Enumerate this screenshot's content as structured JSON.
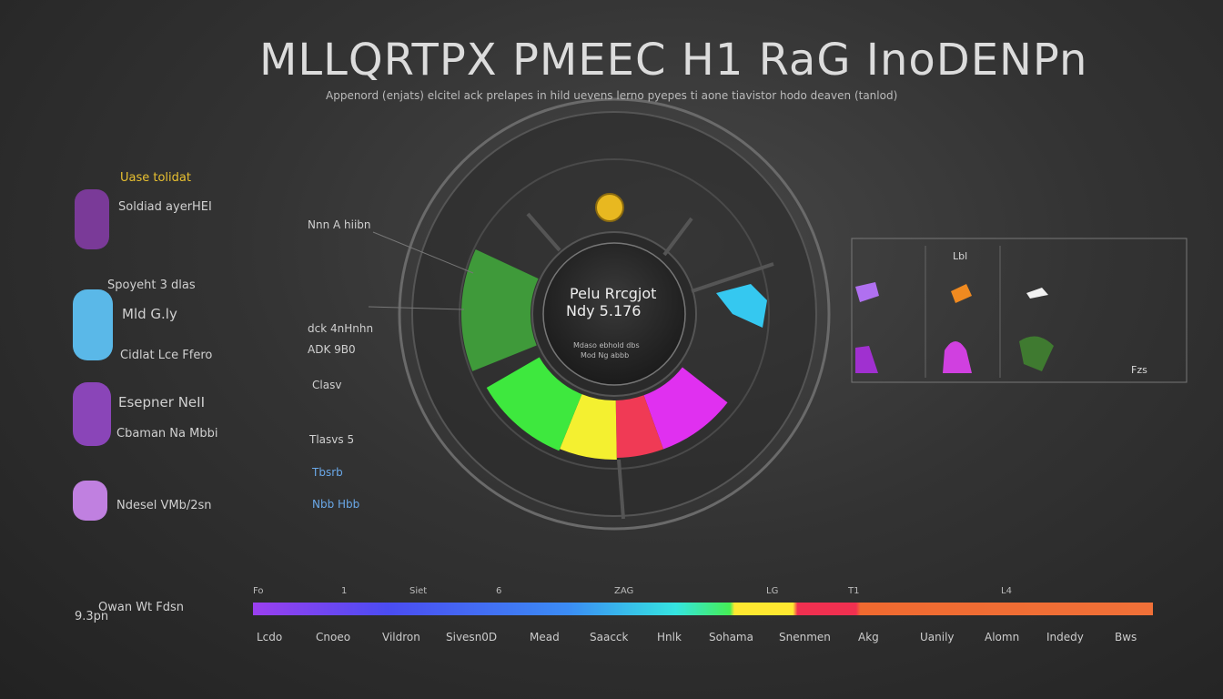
{
  "header": {
    "title": "MLLQRTPX PMEEC H1 RaG InoDENPn",
    "subtitle": "Appenord (enjats) elcitel ack prelapes in hild uevens lerno pyepes ti aone tiavistor hodo deaven (tanlod)"
  },
  "left_list": [
    "Uase tolidat",
    "Soldiad ayerHEI",
    "Spoyeht 3 dlas",
    "Mld G.ly",
    "Cidlat Lce Ffero",
    "Esepner NeII",
    "Cbaman Na Mbbi",
    "Ndesel VMb/2sn",
    "Owan Wt Fdsn",
    "9.3pn"
  ],
  "middle_labels": [
    "Nnn A hiibn",
    "dck 4nHnhn",
    "ADK 9B0",
    "Clasv",
    "Tlasvs 5",
    "Tbsrb",
    "Nbb Hbb"
  ],
  "center": {
    "title": "Pelu Rrcgjot",
    "value": "Ndy 5.176",
    "note1": "Mdaso ebhold dbs",
    "note2": "Mod Ng abbb"
  },
  "panel": {
    "header": "Lbl",
    "footer": "Fzs"
  },
  "scale": {
    "ticks": [
      "Fo",
      "1",
      "Siet",
      "6",
      "ZAG",
      "LG",
      "T1",
      "L4"
    ],
    "labels": [
      "Lcdo",
      "Cnoeo",
      "Vildron",
      "Sivesn0D",
      "Mead",
      "Saacck",
      "Hnlk",
      "Sohama",
      "Snenmen",
      "Akg",
      "Uanily",
      "Alomn",
      "Indedy",
      "Bws"
    ]
  }
}
